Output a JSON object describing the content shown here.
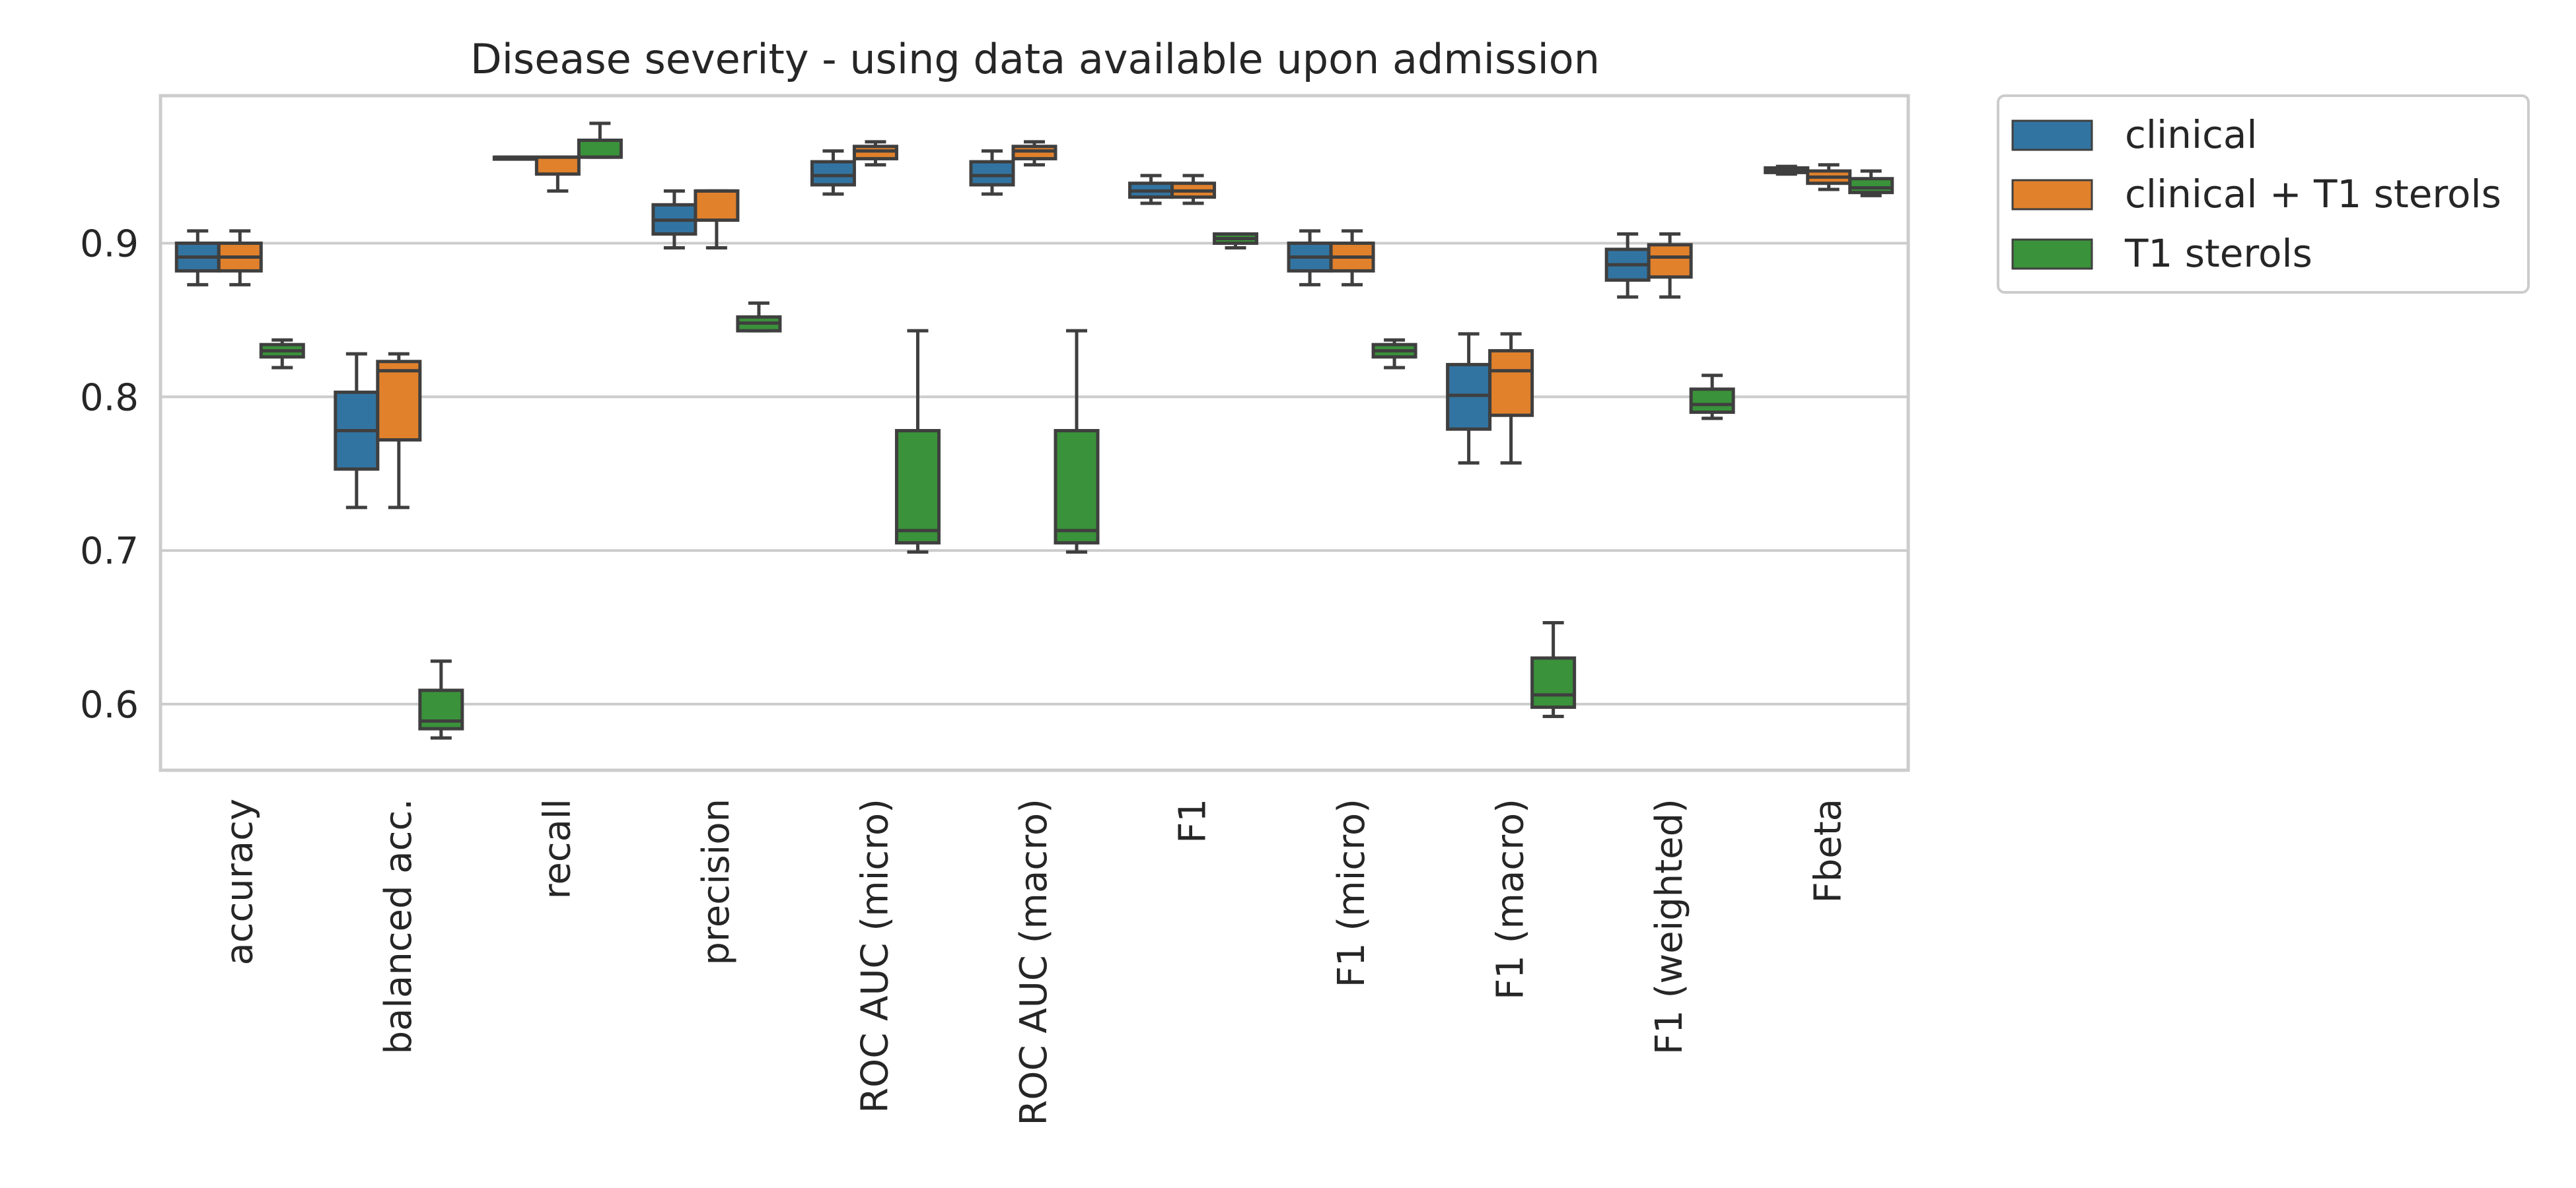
{
  "chart_data": {
    "type": "boxplot",
    "title": "Disease severity - using data available upon admission",
    "xlabel": "",
    "ylabel": "",
    "ylim": [
      0.557,
      0.996
    ],
    "yticks": [
      0.6,
      0.7,
      0.8,
      0.9
    ],
    "ytick_labels": [
      "0.6",
      "0.7",
      "0.8",
      "0.9"
    ],
    "grid": "horizontal",
    "legend_position": "outside-top-right",
    "categories": [
      "accuracy",
      "balanced acc.",
      "recall",
      "precision",
      "ROC AUC (micro)",
      "ROC AUC (macro)",
      "F1",
      "F1 (micro)",
      "F1 (macro)",
      "F1 (weighted)",
      "Fbeta"
    ],
    "series": [
      {
        "name": "clinical",
        "color": "#3274a1",
        "boxes": [
          {
            "whislo": 0.873,
            "q1": 0.882,
            "med": 0.891,
            "q3": 0.9,
            "whishi": 0.908
          },
          {
            "whislo": 0.728,
            "q1": 0.753,
            "med": 0.778,
            "q3": 0.803,
            "whishi": 0.828
          },
          {
            "whislo": 0.956,
            "q1": 0.956,
            "med": 0.956,
            "q3": 0.956,
            "whishi": 0.956
          },
          {
            "whislo": 0.897,
            "q1": 0.906,
            "med": 0.915,
            "q3": 0.925,
            "whishi": 0.934
          },
          {
            "whislo": 0.932,
            "q1": 0.938,
            "med": 0.944,
            "q3": 0.953,
            "whishi": 0.96
          },
          {
            "whislo": 0.932,
            "q1": 0.938,
            "med": 0.944,
            "q3": 0.953,
            "whishi": 0.96
          },
          {
            "whislo": 0.926,
            "q1": 0.93,
            "med": 0.934,
            "q3": 0.939,
            "whishi": 0.944
          },
          {
            "whislo": 0.873,
            "q1": 0.882,
            "med": 0.891,
            "q3": 0.9,
            "whishi": 0.908
          },
          {
            "whislo": 0.757,
            "q1": 0.779,
            "med": 0.801,
            "q3": 0.821,
            "whishi": 0.841
          },
          {
            "whislo": 0.865,
            "q1": 0.876,
            "med": 0.886,
            "q3": 0.896,
            "whishi": 0.906
          },
          {
            "whislo": 0.945,
            "q1": 0.946,
            "med": 0.948,
            "q3": 0.949,
            "whishi": 0.95
          }
        ]
      },
      {
        "name": "clinical + T1 sterols",
        "color": "#e1812c",
        "boxes": [
          {
            "whislo": 0.873,
            "q1": 0.882,
            "med": 0.891,
            "q3": 0.9,
            "whishi": 0.908
          },
          {
            "whislo": 0.728,
            "q1": 0.772,
            "med": 0.817,
            "q3": 0.823,
            "whishi": 0.828
          },
          {
            "whislo": 0.934,
            "q1": 0.945,
            "med": 0.956,
            "q3": 0.956,
            "whishi": 0.956
          },
          {
            "whislo": 0.897,
            "q1": 0.915,
            "med": 0.934,
            "q3": 0.934,
            "whishi": 0.934
          },
          {
            "whislo": 0.951,
            "q1": 0.955,
            "med": 0.96,
            "q3": 0.963,
            "whishi": 0.966
          },
          {
            "whislo": 0.951,
            "q1": 0.955,
            "med": 0.96,
            "q3": 0.963,
            "whishi": 0.966
          },
          {
            "whislo": 0.926,
            "q1": 0.93,
            "med": 0.934,
            "q3": 0.939,
            "whishi": 0.944
          },
          {
            "whislo": 0.873,
            "q1": 0.882,
            "med": 0.891,
            "q3": 0.9,
            "whishi": 0.908
          },
          {
            "whislo": 0.757,
            "q1": 0.788,
            "med": 0.817,
            "q3": 0.83,
            "whishi": 0.841
          },
          {
            "whislo": 0.865,
            "q1": 0.878,
            "med": 0.891,
            "q3": 0.899,
            "whishi": 0.906
          },
          {
            "whislo": 0.935,
            "q1": 0.939,
            "med": 0.943,
            "q3": 0.947,
            "whishi": 0.951
          }
        ]
      },
      {
        "name": "T1 sterols",
        "color": "#3a923a",
        "boxes": [
          {
            "whislo": 0.819,
            "q1": 0.826,
            "med": 0.83,
            "q3": 0.834,
            "whishi": 0.837
          },
          {
            "whislo": 0.578,
            "q1": 0.584,
            "med": 0.589,
            "q3": 0.609,
            "whishi": 0.628
          },
          {
            "whislo": 0.956,
            "q1": 0.956,
            "med": 0.956,
            "q3": 0.967,
            "whishi": 0.978
          },
          {
            "whislo": 0.843,
            "q1": 0.843,
            "med": 0.848,
            "q3": 0.852,
            "whishi": 0.861
          },
          {
            "whislo": 0.699,
            "q1": 0.705,
            "med": 0.713,
            "q3": 0.778,
            "whishi": 0.843
          },
          {
            "whislo": 0.699,
            "q1": 0.705,
            "med": 0.713,
            "q3": 0.778,
            "whishi": 0.843
          },
          {
            "whislo": 0.897,
            "q1": 0.9,
            "med": 0.903,
            "q3": 0.906,
            "whishi": 0.906
          },
          {
            "whislo": 0.819,
            "q1": 0.826,
            "med": 0.83,
            "q3": 0.834,
            "whishi": 0.837
          },
          {
            "whislo": 0.592,
            "q1": 0.598,
            "med": 0.606,
            "q3": 0.63,
            "whishi": 0.653
          },
          {
            "whislo": 0.786,
            "q1": 0.79,
            "med": 0.795,
            "q3": 0.805,
            "whishi": 0.814
          },
          {
            "whislo": 0.931,
            "q1": 0.933,
            "med": 0.936,
            "q3": 0.942,
            "whishi": 0.947
          }
        ]
      }
    ]
  }
}
